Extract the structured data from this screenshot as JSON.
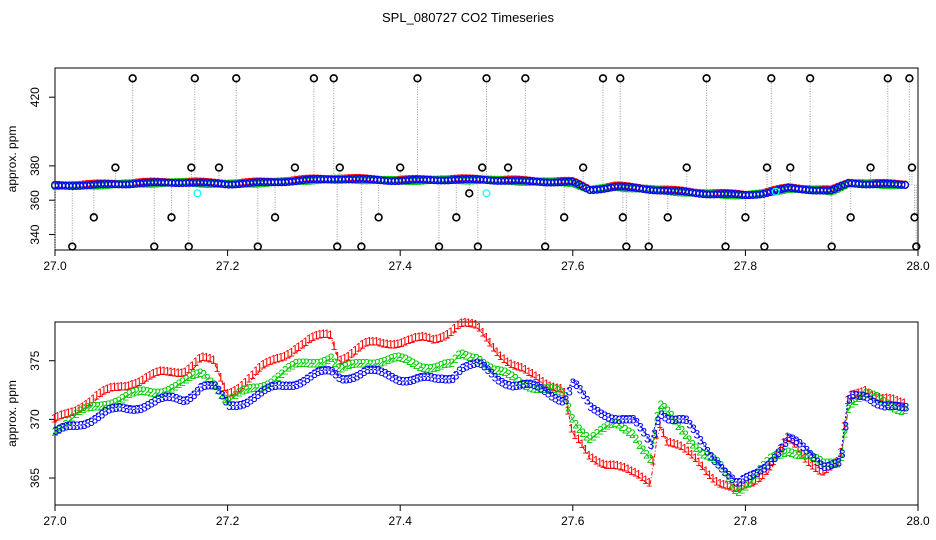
{
  "title": "SPL_080727  CO2 Timeseries",
  "colors": {
    "series1": "#ff0000",
    "series2": "#00cc00",
    "series3": "#0000ff",
    "flagged": "#000000",
    "cyan": "#00ffff",
    "dropline": "#999999"
  },
  "chart_data": [
    {
      "type": "scatter",
      "ylabel": "approx. ppm",
      "xlim": [
        27.0,
        28.0
      ],
      "ylim": [
        331,
        437
      ],
      "xticks": [
        "27.0",
        "27.2",
        "27.4",
        "27.6",
        "27.8",
        "28.0"
      ],
      "yticks": [
        "340",
        "360",
        "380",
        "420"
      ],
      "grid": false,
      "baseline_segments": [
        {
          "x": [
            27.0,
            27.05,
            27.1,
            27.15,
            27.2,
            27.25,
            27.3,
            27.33,
            27.4,
            27.45,
            27.5,
            27.55,
            27.6,
            27.62,
            27.65,
            27.7,
            27.75,
            27.8,
            27.82,
            27.85,
            27.9,
            27.92,
            27.98
          ],
          "y": [
            368.5,
            369,
            370,
            370.5,
            369.5,
            370.5,
            372,
            372.5,
            371.5,
            372,
            372,
            371,
            370.5,
            366,
            368,
            366,
            364,
            363,
            364,
            367,
            365.5,
            370,
            369
          ]
        }
      ],
      "flagged_points": [
        {
          "x": 27.02,
          "y": 333
        },
        {
          "x": 27.045,
          "y": 350
        },
        {
          "x": 27.07,
          "y": 379
        },
        {
          "x": 27.09,
          "y": 431
        },
        {
          "x": 27.115,
          "y": 333
        },
        {
          "x": 27.135,
          "y": 350
        },
        {
          "x": 27.155,
          "y": 333
        },
        {
          "x": 27.158,
          "y": 379
        },
        {
          "x": 27.162,
          "y": 431
        },
        {
          "x": 27.19,
          "y": 379
        },
        {
          "x": 27.21,
          "y": 431
        },
        {
          "x": 27.235,
          "y": 333
        },
        {
          "x": 27.255,
          "y": 350
        },
        {
          "x": 27.278,
          "y": 379
        },
        {
          "x": 27.3,
          "y": 431
        },
        {
          "x": 27.323,
          "y": 431
        },
        {
          "x": 27.327,
          "y": 333
        },
        {
          "x": 27.33,
          "y": 379
        },
        {
          "x": 27.355,
          "y": 333
        },
        {
          "x": 27.375,
          "y": 350
        },
        {
          "x": 27.4,
          "y": 379
        },
        {
          "x": 27.42,
          "y": 431
        },
        {
          "x": 27.445,
          "y": 333
        },
        {
          "x": 27.465,
          "y": 350
        },
        {
          "x": 27.48,
          "y": 364
        },
        {
          "x": 27.49,
          "y": 333
        },
        {
          "x": 27.495,
          "y": 379
        },
        {
          "x": 27.5,
          "y": 431
        },
        {
          "x": 27.525,
          "y": 379
        },
        {
          "x": 27.545,
          "y": 431
        },
        {
          "x": 27.568,
          "y": 333
        },
        {
          "x": 27.59,
          "y": 350
        },
        {
          "x": 27.612,
          "y": 379
        },
        {
          "x": 27.635,
          "y": 431
        },
        {
          "x": 27.655,
          "y": 431
        },
        {
          "x": 27.658,
          "y": 350
        },
        {
          "x": 27.662,
          "y": 333
        },
        {
          "x": 27.688,
          "y": 333
        },
        {
          "x": 27.71,
          "y": 350
        },
        {
          "x": 27.732,
          "y": 379
        },
        {
          "x": 27.755,
          "y": 431
        },
        {
          "x": 27.777,
          "y": 333
        },
        {
          "x": 27.8,
          "y": 350
        },
        {
          "x": 27.822,
          "y": 333
        },
        {
          "x": 27.825,
          "y": 379
        },
        {
          "x": 27.83,
          "y": 431
        },
        {
          "x": 27.852,
          "y": 379
        },
        {
          "x": 27.875,
          "y": 431
        },
        {
          "x": 27.9,
          "y": 333
        },
        {
          "x": 27.922,
          "y": 350
        },
        {
          "x": 27.945,
          "y": 379
        },
        {
          "x": 27.965,
          "y": 431
        },
        {
          "x": 27.99,
          "y": 431
        },
        {
          "x": 27.993,
          "y": 379
        },
        {
          "x": 27.996,
          "y": 350
        },
        {
          "x": 27.998,
          "y": 333
        }
      ],
      "cyan_points": [
        {
          "x": 27.165,
          "y": 364
        },
        {
          "x": 27.5,
          "y": 364
        },
        {
          "x": 27.835,
          "y": 365
        }
      ]
    },
    {
      "type": "line",
      "ylabel": "approx. ppm",
      "xlim": [
        27.0,
        28.0
      ],
      "ylim": [
        362.7,
        378.3
      ],
      "xticks": [
        "27.0",
        "27.2",
        "27.4",
        "27.6",
        "27.8",
        "28.0"
      ],
      "yticks": [
        "365",
        "370",
        "375"
      ],
      "grid": false,
      "series": [
        {
          "marker": "1",
          "x": [
            27.0,
            27.03,
            27.06,
            27.09,
            27.12,
            27.15,
            27.17,
            27.185,
            27.2,
            27.24,
            27.28,
            27.3,
            27.32,
            27.33,
            27.36,
            27.4,
            27.44,
            27.46,
            27.47,
            27.49,
            27.51,
            27.53,
            27.55,
            27.57,
            27.59,
            27.6,
            27.62,
            27.65,
            27.67,
            27.69,
            27.7,
            27.71,
            27.73,
            27.75,
            27.77,
            27.79,
            27.81,
            27.83,
            27.85,
            27.87,
            27.89,
            27.91,
            27.92,
            27.94,
            27.96,
            27.98
          ],
          "y": [
            369.5,
            371,
            372,
            373,
            373.5,
            374,
            375,
            374.5,
            372,
            374,
            376,
            376.5,
            377,
            375,
            376,
            376.5,
            376.5,
            377.5,
            378,
            377.5,
            376,
            374.5,
            373.5,
            373,
            372.5,
            368.5,
            366.5,
            366,
            365,
            364.5,
            370,
            368,
            367,
            366,
            364.5,
            363.5,
            364.5,
            366,
            368,
            366.5,
            365.5,
            366,
            371.5,
            372.5,
            371.5,
            371
          ]
        },
        {
          "marker": "2",
          "x": [
            27.0,
            27.03,
            27.06,
            27.09,
            27.12,
            27.15,
            27.17,
            27.185,
            27.2,
            27.24,
            27.28,
            27.3,
            27.32,
            27.33,
            27.36,
            27.4,
            27.44,
            27.46,
            27.47,
            27.49,
            27.51,
            27.53,
            27.55,
            27.57,
            27.59,
            27.6,
            27.62,
            27.65,
            27.67,
            27.69,
            27.7,
            27.71,
            27.73,
            27.75,
            27.77,
            27.79,
            27.81,
            27.83,
            27.85,
            27.87,
            27.89,
            27.91,
            27.92,
            27.94,
            27.96,
            27.98
          ],
          "y": [
            369.2,
            370.5,
            371.5,
            372,
            372.5,
            373,
            374,
            373.2,
            371.5,
            373,
            374.5,
            375,
            375.3,
            374,
            375,
            375,
            374.5,
            374.5,
            375.5,
            375.5,
            374,
            373.5,
            373,
            372.5,
            372,
            370,
            368.5,
            369.5,
            369,
            366.5,
            371,
            370.5,
            369,
            367,
            366,
            364,
            365,
            366.5,
            367.5,
            367,
            366,
            366.5,
            371.5,
            372,
            371.5,
            371
          ]
        },
        {
          "marker": "3",
          "x": [
            27.0,
            27.03,
            27.06,
            27.09,
            27.12,
            27.15,
            27.17,
            27.185,
            27.2,
            27.24,
            27.28,
            27.3,
            27.32,
            27.33,
            27.36,
            27.4,
            27.44,
            27.46,
            27.47,
            27.49,
            27.51,
            27.53,
            27.55,
            27.57,
            27.59,
            27.6,
            27.62,
            27.65,
            27.67,
            27.69,
            27.7,
            27.71,
            27.73,
            27.75,
            27.77,
            27.79,
            27.81,
            27.83,
            27.85,
            27.87,
            27.89,
            27.91,
            27.92,
            27.94,
            27.96,
            27.98
          ],
          "y": [
            369,
            370,
            370.8,
            371.3,
            371.8,
            372,
            373.2,
            372.8,
            371.3,
            372.5,
            373.5,
            374,
            374.2,
            373.8,
            374.3,
            373.8,
            373.5,
            374,
            374.8,
            374.8,
            373.8,
            373.3,
            373,
            372.5,
            372,
            373.5,
            371,
            370.5,
            370,
            368,
            371,
            370.5,
            370,
            368,
            366.5,
            364.5,
            365.5,
            367,
            368.5,
            367.5,
            366.5,
            366.5,
            372,
            372.3,
            371.5,
            371
          ]
        }
      ]
    }
  ]
}
